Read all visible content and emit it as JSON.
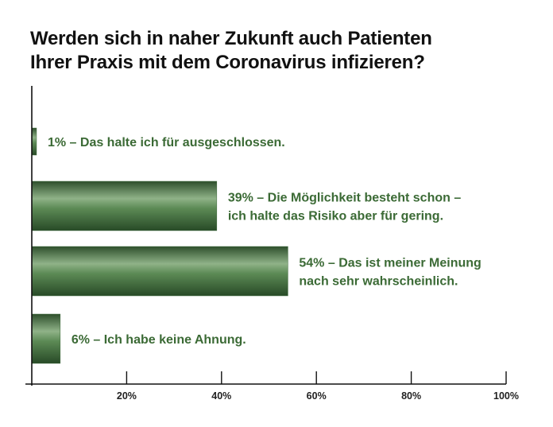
{
  "chart_data": {
    "type": "bar",
    "orientation": "horizontal",
    "title_lines": [
      "Werden sich in naher Zukunft auch Patienten",
      "Ihrer Praxis mit dem Coronavirus infizieren?"
    ],
    "xlabel": "",
    "ylabel": "",
    "xlim": [
      0,
      100
    ],
    "x_ticks": [
      20,
      40,
      60,
      80,
      100
    ],
    "x_tick_labels": [
      "20%",
      "40%",
      "60%",
      "80%",
      "100%"
    ],
    "grid": false,
    "legend": "none",
    "bar_color": "#3f6b3c",
    "label_color": "#3b6a35",
    "values": [
      1,
      39,
      54,
      6
    ],
    "labels": [
      [
        "1% – Das halte ich für ausgeschlossen."
      ],
      [
        "39% – Die Möglichkeit besteht schon –",
        "ich halte das Risiko aber für gering."
      ],
      [
        "54% – Das ist meiner Meinung",
        "nach sehr wahrscheinlich."
      ],
      [
        "6% – Ich habe keine Ahnung."
      ]
    ]
  }
}
